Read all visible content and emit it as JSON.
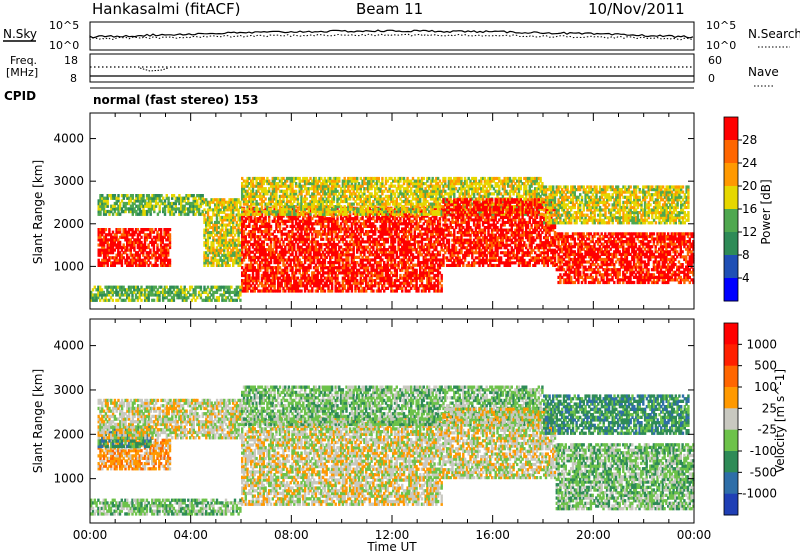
{
  "header": {
    "station": "Hankasalmi (fitACF)",
    "beam": "Beam 11",
    "date": "10/Nov/2011"
  },
  "status_panel": {
    "nsky_label": "N.Sky",
    "nsearch_label": "N.Search",
    "nsky_ticks": [
      "10^5",
      "10^0"
    ],
    "nsearch_ticks": [
      "10^5",
      "10^0"
    ],
    "freq_label_1": "Freq.",
    "freq_label_2": "[MHz]",
    "freq_ticks": [
      "18",
      "8"
    ],
    "nave_label": "Nave",
    "nave_ticks": [
      "60",
      "0"
    ],
    "cpid_label": "CPID",
    "cpid_text": "normal (fast stereo) 153"
  },
  "chart_data": [
    {
      "type": "heatmap",
      "name": "power",
      "ylabel": "Slant Range [km]",
      "ylim": [
        0,
        4600
      ],
      "yticks": [
        1000,
        2000,
        3000,
        4000
      ],
      "xlim": [
        0,
        24
      ],
      "colorbar": {
        "label": "Power [dB]",
        "ticks": [
          "4",
          "8",
          "12",
          "16",
          "20",
          "24",
          "28"
        ],
        "colors": [
          "#0000ff",
          "#1f4fb5",
          "#2e8b57",
          "#4fa84f",
          "#e6d700",
          "#ff9900",
          "#ff6600",
          "#ff0000"
        ]
      },
      "bands": [
        {
          "t": [
            0.3,
            3.2
          ],
          "r": [
            1000,
            1900
          ],
          "level": 7
        },
        {
          "t": [
            0.3,
            4.5
          ],
          "r": [
            2200,
            2700
          ],
          "level": 3
        },
        {
          "t": [
            4.5,
            6.0
          ],
          "r": [
            1000,
            2600
          ],
          "level": 4
        },
        {
          "t": [
            6.0,
            14.0
          ],
          "r": [
            400,
            2400
          ],
          "level": 7
        },
        {
          "t": [
            6.0,
            18.0
          ],
          "r": [
            2200,
            3100
          ],
          "level": 4
        },
        {
          "t": [
            14.0,
            18.5
          ],
          "r": [
            1000,
            2600
          ],
          "level": 7
        },
        {
          "t": [
            18.5,
            24.0
          ],
          "r": [
            600,
            1800
          ],
          "level": 7
        },
        {
          "t": [
            18.0,
            23.8
          ],
          "r": [
            2000,
            2900
          ],
          "level": 4
        },
        {
          "t": [
            0.0,
            6.0
          ],
          "r": [
            180,
            550
          ],
          "level": 3
        }
      ]
    },
    {
      "type": "heatmap",
      "name": "velocity",
      "ylabel": "Slant Range [km]",
      "ylim": [
        0,
        4600
      ],
      "yticks": [
        1000,
        2000,
        3000,
        4000
      ],
      "xlim": [
        0,
        24
      ],
      "xlabel": "Time UT",
      "xticks": [
        "00:00",
        "04:00",
        "08:00",
        "12:00",
        "16:00",
        "20:00",
        "00:00"
      ],
      "colorbar": {
        "label": "Velocity [m s^-1]",
        "ticks": [
          "1000",
          "500",
          "100",
          "25",
          "-25",
          "-100",
          "-500",
          "-1000"
        ],
        "colors": [
          "#1f3fb5",
          "#2e6ea8",
          "#2e8b57",
          "#6dc24a",
          "#c8c8c0",
          "#ff9900",
          "#ff6600",
          "#ff2000",
          "#ff0000"
        ]
      },
      "bands": [
        {
          "t": [
            0.3,
            3.2
          ],
          "r": [
            1200,
            1900
          ],
          "level": 5
        },
        {
          "t": [
            0.3,
            2.5
          ],
          "r": [
            1700,
            2200
          ],
          "level": 2
        },
        {
          "t": [
            0.3,
            6.0
          ],
          "r": [
            1900,
            2800
          ],
          "level": 4
        },
        {
          "t": [
            6.0,
            14.0
          ],
          "r": [
            400,
            2400
          ],
          "level": 4
        },
        {
          "t": [
            6.0,
            18.0
          ],
          "r": [
            2200,
            3100
          ],
          "level": 3
        },
        {
          "t": [
            14.0,
            18.5
          ],
          "r": [
            1000,
            2600
          ],
          "level": 4
        },
        {
          "t": [
            18.5,
            24.0
          ],
          "r": [
            300,
            1800
          ],
          "level": 3
        },
        {
          "t": [
            18.0,
            23.8
          ],
          "r": [
            2000,
            2900
          ],
          "level": 2
        },
        {
          "t": [
            0.0,
            6.0
          ],
          "r": [
            180,
            550
          ],
          "level": 3
        }
      ]
    }
  ]
}
